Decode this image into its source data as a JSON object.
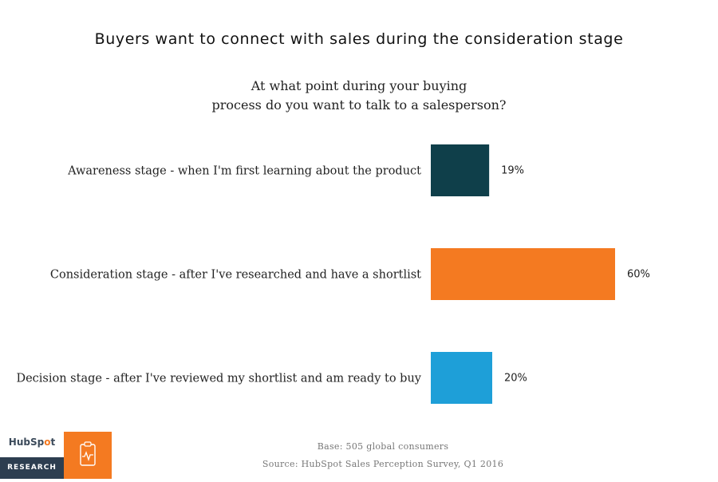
{
  "title": "Buyers want to connect with sales during the consideration stage",
  "subtitle_lines": [
    "At what point during your buying",
    "process do you want to talk to a salesperson?"
  ],
  "chart_data": {
    "type": "bar",
    "orientation": "horizontal",
    "title": "Buyers want to connect with sales during the consideration stage",
    "question": "At what point during your buying process do you want to talk to a salesperson?",
    "categories": [
      "Awareness stage - when I'm first learning about the product",
      "Consideration stage - after I've researched and have a shortlist",
      "Decision stage - after I've reviewed my shortlist and am ready to buy"
    ],
    "values": [
      19,
      60,
      20
    ],
    "value_labels": [
      "19%",
      "60%",
      "20%"
    ],
    "unit": "%",
    "colors": [
      "#0f3f4a",
      "#f47a21",
      "#1e9fd8"
    ],
    "grid": false,
    "legend": "none"
  },
  "footer": {
    "base": "Base: 505 global consumers",
    "source": "Source: HubSpot Sales Perception Survey, Q1 2016"
  },
  "logo": {
    "word_part1": "HubSp",
    "word_dot": "o",
    "word_part2": "t",
    "band": "RESEARCH",
    "icon": "clipboard-pulse-icon",
    "band_color": "#2d3e50",
    "icon_box_color": "#f47a21"
  }
}
